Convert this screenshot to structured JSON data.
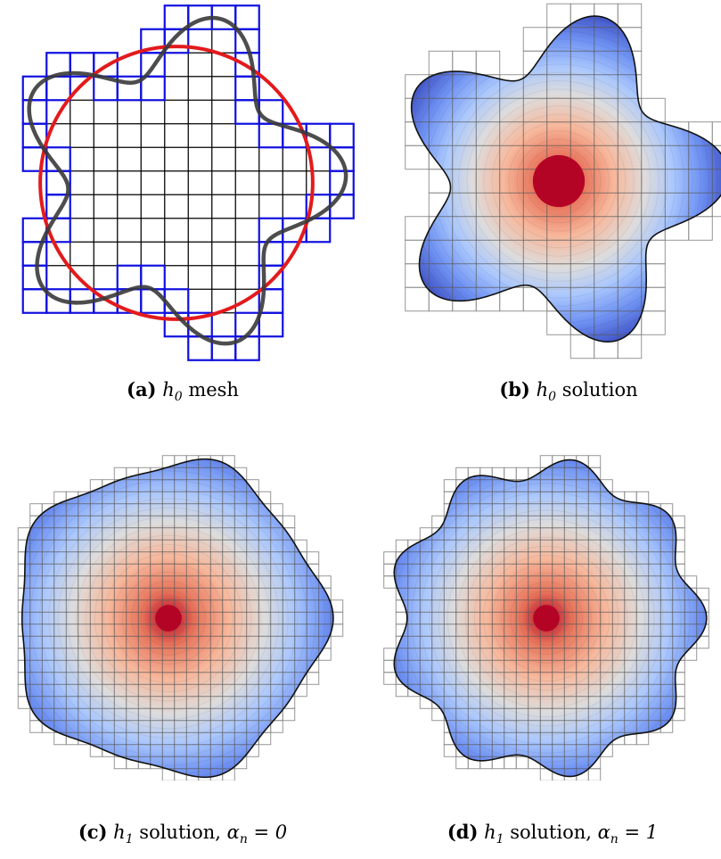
{
  "figure": {
    "panels": [
      {
        "key": "a",
        "label": "(a)",
        "caption_math": "h",
        "caption_sub": "0",
        "caption_text": " mesh",
        "caption_extra": "",
        "shape": "star-5",
        "kind": "mesh",
        "overlays": [
          "red-circle",
          "dark-boundary",
          "blue-cut-cells"
        ]
      },
      {
        "key": "b",
        "label": "(b)",
        "caption_math": "h",
        "caption_sub": "0",
        "caption_text": " solution",
        "caption_extra": "",
        "shape": "star-5",
        "kind": "solution"
      },
      {
        "key": "c",
        "label": "(c)",
        "caption_math": "h",
        "caption_sub": "1",
        "caption_text": " solution, ",
        "caption_extra": "α<sub>n</sub> = 0",
        "shape": "rounded-pentagon",
        "kind": "solution"
      },
      {
        "key": "d",
        "label": "(d)",
        "caption_math": "h",
        "caption_sub": "1",
        "caption_text": " solution, ",
        "caption_extra": "α<sub>n</sub> = 1",
        "shape": "wavy-9",
        "kind": "solution"
      }
    ],
    "colors": {
      "circle": "#e31a1c",
      "boundary": "#3a3a3a",
      "cut_cells": "#1010e0",
      "grid": "#000000",
      "solution_grid": "#8a8a8a",
      "colormap": [
        "#3b4cc0",
        "#6f92f3",
        "#aac7fd",
        "#dddcdc",
        "#f7b89c",
        "#e7745b",
        "#b40426"
      ]
    }
  }
}
